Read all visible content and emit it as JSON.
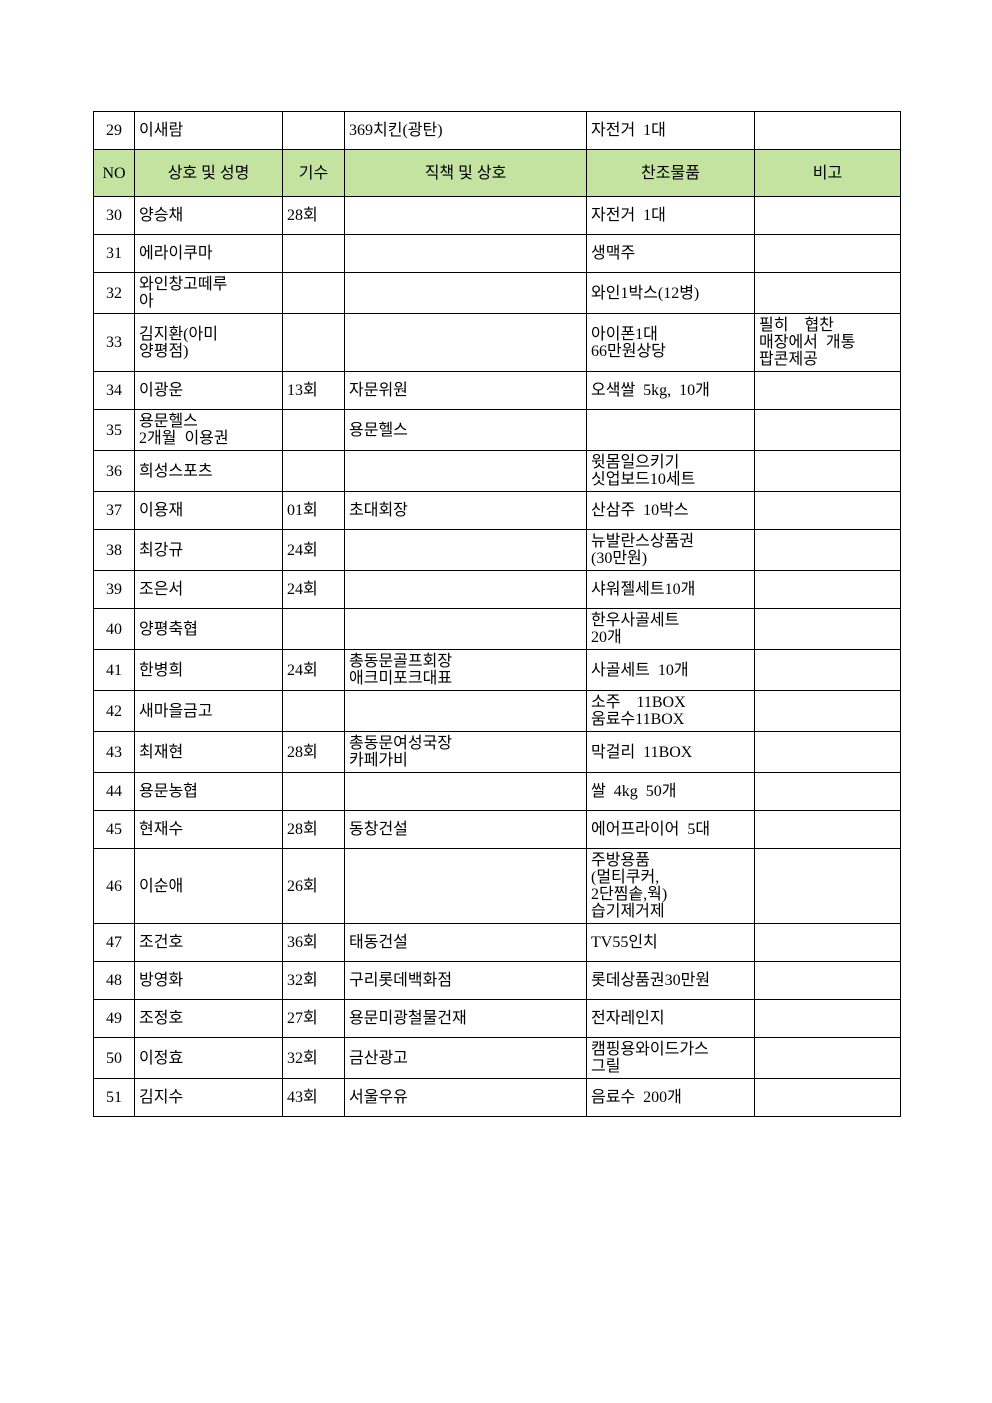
{
  "document": {
    "background": "#ffffff",
    "header_bg": "#c4e2a0",
    "border_color": "#000000",
    "rows": [
      {
        "type": "data",
        "no": "29",
        "name": "이새람",
        "gisu": "",
        "title": "369치킨(광탄)",
        "item": "자전거  1대",
        "note": ""
      },
      {
        "type": "header",
        "no": "NO",
        "name": "상호 및 성명",
        "gisu": "기수",
        "title": "직책 및 상호",
        "item": "찬조물품",
        "note": "비고"
      },
      {
        "type": "data",
        "no": "30",
        "name": "양승채",
        "gisu": "28회",
        "title": "",
        "item": "자전거  1대",
        "note": ""
      },
      {
        "type": "data",
        "no": "31",
        "name": "에라이쿠마",
        "gisu": "",
        "title": "",
        "item": "생맥주",
        "note": ""
      },
      {
        "type": "data",
        "no": "32",
        "name": "와인창고떼루\n아",
        "gisu": "",
        "title": "",
        "item": "와인1박스(12병)",
        "note": ""
      },
      {
        "type": "data",
        "no": "33",
        "name": "김지환(아미\n양평점)",
        "gisu": "",
        "title": "",
        "item": "아이폰1대\n66만원상당",
        "note": "필히    협찬\n매장에서  개통\n팝콘제공"
      },
      {
        "type": "data",
        "no": "34",
        "name": "이광운",
        "gisu": "13회",
        "title": "자문위원",
        "item": "오색쌀  5kg,  10개",
        "note": ""
      },
      {
        "type": "data",
        "no": "35",
        "name": "용문헬스\n2개월  이용권",
        "gisu": "",
        "title": "용문헬스",
        "item": "",
        "note": ""
      },
      {
        "type": "data",
        "no": "36",
        "name": "희성스포츠",
        "gisu": "",
        "title": "",
        "item": "윗몸일으키기\n싯업보드10세트",
        "note": ""
      },
      {
        "type": "data",
        "no": "37",
        "name": "이용재",
        "gisu": "01회",
        "title": "초대회장",
        "item": "산삼주  10박스",
        "note": ""
      },
      {
        "type": "data",
        "no": "38",
        "name": "최강규",
        "gisu": "24회",
        "title": "",
        "item": "뉴발란스상품권\n(30만원)",
        "note": ""
      },
      {
        "type": "data",
        "no": "39",
        "name": "조은서",
        "gisu": "24회",
        "title": "",
        "item": "샤워젤세트10개",
        "note": ""
      },
      {
        "type": "data",
        "no": "40",
        "name": "양평축협",
        "gisu": "",
        "title": "",
        "item": "한우사골세트\n20개",
        "note": ""
      },
      {
        "type": "data",
        "no": "41",
        "name": "한병희",
        "gisu": "24회",
        "title": "총동문골프회장\n애크미포크대표",
        "item": "사골세트  10개",
        "note": ""
      },
      {
        "type": "data",
        "no": "42",
        "name": "새마을금고",
        "gisu": "",
        "title": "",
        "item": "소주    11BOX\n움료수11BOX",
        "note": ""
      },
      {
        "type": "data",
        "no": "43",
        "name": "최재현",
        "gisu": "28회",
        "title": "총동문여성국장\n카페가비",
        "item": "막걸리  11BOX",
        "note": ""
      },
      {
        "type": "data",
        "no": "44",
        "name": "용문농협",
        "gisu": "",
        "title": "",
        "item": "쌀  4kg  50개",
        "note": ""
      },
      {
        "type": "data",
        "no": "45",
        "name": "현재수",
        "gisu": "28회",
        "title": "동창건설",
        "item": "에어프라이어  5대",
        "note": ""
      },
      {
        "type": "data",
        "no": "46",
        "name": "이순애",
        "gisu": "26회",
        "title": "",
        "item": "주방용품\n(멀티쿠커,\n2단찜솥,웍)\n습기제거제",
        "note": ""
      },
      {
        "type": "data",
        "no": "47",
        "name": "조건호",
        "gisu": "36회",
        "title": "태동건설",
        "item": "TV55인치",
        "note": ""
      },
      {
        "type": "data",
        "no": "48",
        "name": "방영화",
        "gisu": "32회",
        "title": "구리롯데백화점",
        "item": "롯데상품권30만원",
        "note": ""
      },
      {
        "type": "data",
        "no": "49",
        "name": "조정호",
        "gisu": "27회",
        "title": "용문미광철물건재",
        "item": "전자레인지",
        "note": ""
      },
      {
        "type": "data",
        "no": "50",
        "name": "이정효",
        "gisu": "32회",
        "title": "금산광고",
        "item": "캠핑용와이드가스\n그릴",
        "note": ""
      },
      {
        "type": "data",
        "no": "51",
        "name": "김지수",
        "gisu": "43회",
        "title": "서울우유",
        "item": "음료수  200개",
        "note": ""
      }
    ]
  }
}
